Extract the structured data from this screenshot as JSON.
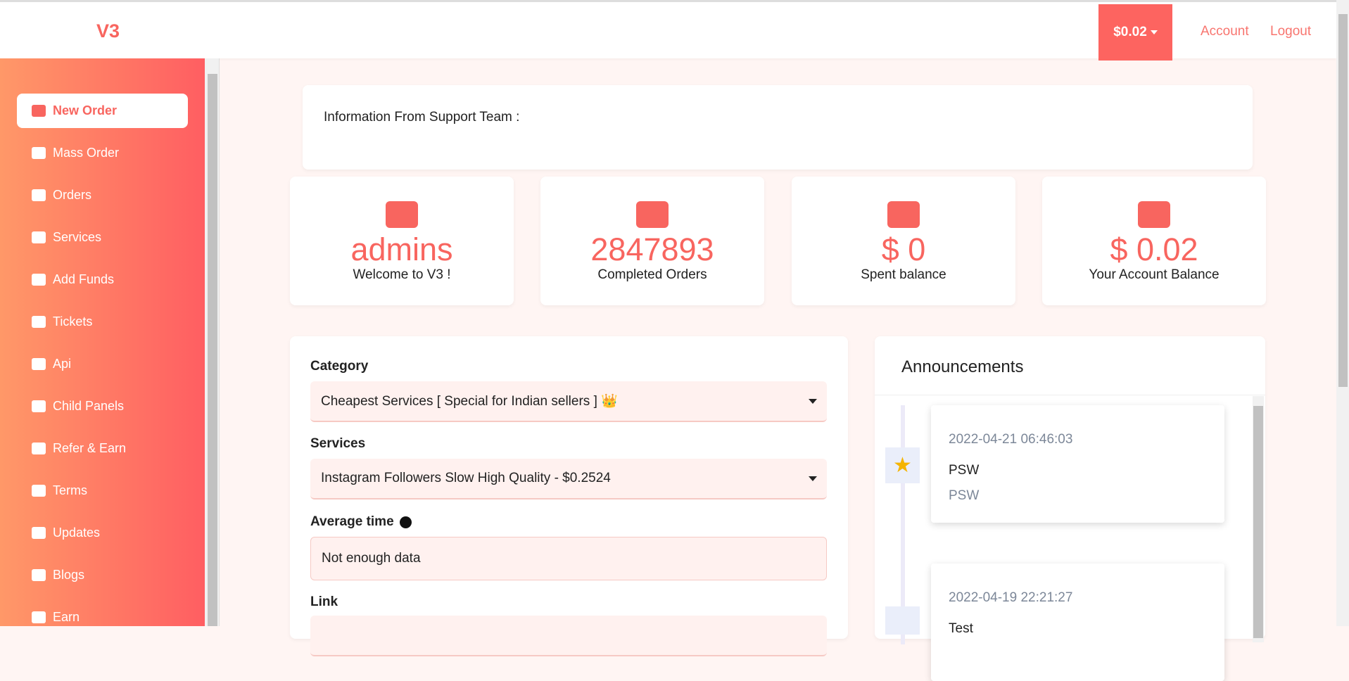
{
  "header": {
    "logo": "V3",
    "balance": "$0.02",
    "links": [
      "Account",
      "Logout"
    ]
  },
  "nav": [
    "New Order",
    "Mass Order",
    "Orders",
    "Services",
    "Add Funds",
    "Tickets",
    "Api",
    "Child Panels",
    "Refer & Earn",
    "Terms",
    "Updates",
    "Blogs",
    "Earn"
  ],
  "info": {
    "text": "Information From Support Team :"
  },
  "stats": [
    {
      "value": "admins",
      "label": "Welcome to V3 !"
    },
    {
      "value": "2847893",
      "label": "Completed Orders"
    },
    {
      "value": "$ 0",
      "label": "Spent balance"
    },
    {
      "value": "$ 0.02",
      "label": "Your Account Balance"
    }
  ],
  "form": {
    "category_label": "Category",
    "category": "Cheapest Services [ Special for Indian sellers ] 👑",
    "services_label": "Services",
    "service": "Instagram Followers Slow High Quality - $0.2524",
    "average_label": "Average time",
    "average": "Not enough data",
    "link_label": "Link"
  },
  "announcements": {
    "title": "Announcements",
    "items": [
      {
        "date": "2022-04-21 06:46:03",
        "title": "PSW",
        "body": "PSW"
      },
      {
        "date": "2022-04-19 22:21:27",
        "title": "Test",
        "body": ""
      }
    ]
  }
}
